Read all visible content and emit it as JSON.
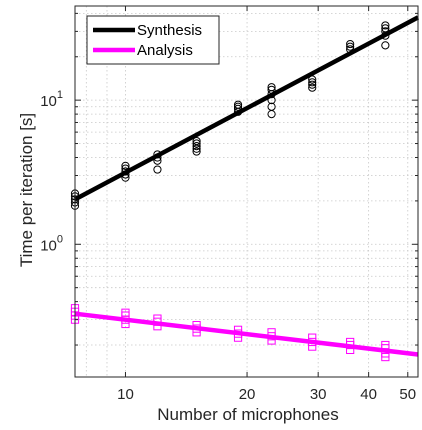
{
  "chart_data": {
    "type": "scatter",
    "xlabel": "Number of microphones",
    "ylabel": "Time per iteration [s]",
    "xscale": "log",
    "yscale": "log",
    "xlim": [
      7.5,
      53
    ],
    "ylim": [
      0.12,
      45
    ],
    "x_ticks": [
      {
        "value": 10,
        "label": "10"
      },
      {
        "value": 20,
        "label": "20"
      },
      {
        "value": 30,
        "label": "30"
      },
      {
        "value": 40,
        "label": "40"
      },
      {
        "value": 50,
        "label": "50"
      }
    ],
    "y_ticks": [
      {
        "value": 1,
        "base": "10",
        "exp": "0"
      },
      {
        "value": 10,
        "base": "10",
        "exp": "1"
      }
    ],
    "grid": true,
    "legend_position": "top-left",
    "series": [
      {
        "name": "Synthesis",
        "color": "#000000",
        "marker": "circle",
        "fit": {
          "x": [
            7.5,
            53
          ],
          "y": [
            2.05,
            37.5
          ]
        },
        "points": [
          [
            7.5,
            1.85
          ],
          [
            7.5,
            1.95
          ],
          [
            7.5,
            2.05
          ],
          [
            7.5,
            2.15
          ],
          [
            7.5,
            2.25
          ],
          [
            10,
            2.9
          ],
          [
            10,
            3.05
          ],
          [
            10,
            3.2
          ],
          [
            10,
            3.35
          ],
          [
            10,
            3.5
          ],
          [
            12,
            3.3
          ],
          [
            12,
            3.8
          ],
          [
            12,
            4.0
          ],
          [
            12,
            4.2
          ],
          [
            15,
            4.4
          ],
          [
            15,
            4.6
          ],
          [
            15,
            4.8
          ],
          [
            15,
            5.0
          ],
          [
            15,
            5.2
          ],
          [
            19,
            8.3
          ],
          [
            19,
            8.7
          ],
          [
            19,
            9.0
          ],
          [
            19,
            9.3
          ],
          [
            23,
            8.0
          ],
          [
            23,
            9.0
          ],
          [
            23,
            10.0
          ],
          [
            23,
            11.0
          ],
          [
            23,
            11.8
          ],
          [
            23,
            12.3
          ],
          [
            29,
            12.2
          ],
          [
            29,
            12.8
          ],
          [
            29,
            13.3
          ],
          [
            29,
            13.9
          ],
          [
            36,
            22.5
          ],
          [
            36,
            23.5
          ],
          [
            36,
            24.5
          ],
          [
            44,
            24.0
          ],
          [
            44,
            28.0
          ],
          [
            44,
            30.0
          ],
          [
            44,
            31.5
          ],
          [
            44,
            33.0
          ]
        ]
      },
      {
        "name": "Analysis",
        "color": "#ff00ff",
        "marker": "square",
        "fit": {
          "x": [
            7.5,
            53
          ],
          "y": [
            0.33,
            0.172
          ]
        },
        "points": [
          [
            7.5,
            0.3
          ],
          [
            7.5,
            0.32
          ],
          [
            7.5,
            0.34
          ],
          [
            7.5,
            0.36
          ],
          [
            10,
            0.28
          ],
          [
            10,
            0.3
          ],
          [
            10,
            0.32
          ],
          [
            10,
            0.335
          ],
          [
            12,
            0.27
          ],
          [
            12,
            0.29
          ],
          [
            12,
            0.305
          ],
          [
            15,
            0.245
          ],
          [
            15,
            0.26
          ],
          [
            15,
            0.275
          ],
          [
            19,
            0.225
          ],
          [
            19,
            0.24
          ],
          [
            19,
            0.255
          ],
          [
            23,
            0.215
          ],
          [
            23,
            0.23
          ],
          [
            23,
            0.245
          ],
          [
            29,
            0.195
          ],
          [
            29,
            0.21
          ],
          [
            29,
            0.225
          ],
          [
            36,
            0.185
          ],
          [
            36,
            0.2
          ],
          [
            36,
            0.21
          ],
          [
            44,
            0.165
          ],
          [
            44,
            0.175
          ],
          [
            44,
            0.19
          ],
          [
            44,
            0.2
          ]
        ]
      }
    ]
  }
}
